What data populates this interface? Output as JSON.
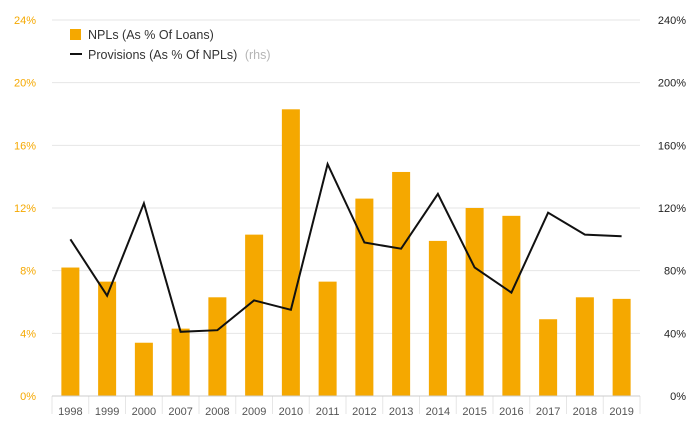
{
  "chart_data": {
    "type": "bar",
    "categories": [
      "1998",
      "1999",
      "2000",
      "2007",
      "2008",
      "2009",
      "2010",
      "2011",
      "2012",
      "2013",
      "2014",
      "2015",
      "2016",
      "2017",
      "2018",
      "2019"
    ],
    "series": [
      {
        "name": "NPLs (As % Of Loans)",
        "type": "bar",
        "axis": "left",
        "values": [
          8.2,
          7.3,
          3.4,
          4.3,
          6.3,
          10.3,
          18.3,
          7.3,
          12.6,
          14.3,
          9.9,
          12.0,
          11.5,
          4.9,
          6.3,
          6.2
        ]
      },
      {
        "name": "Provisions (As % Of NPLs)",
        "name_suffix": "(rhs)",
        "type": "line",
        "axis": "right",
        "values": [
          100,
          64,
          123,
          41,
          42,
          61,
          55,
          148,
          98,
          94,
          129,
          82,
          66,
          117,
          103,
          102
        ]
      }
    ],
    "y_left": {
      "lim": [
        0,
        24
      ],
      "ticks": [
        0,
        4,
        8,
        12,
        16,
        20,
        24
      ],
      "tick_labels": [
        "0%",
        "4%",
        "8%",
        "12%",
        "16%",
        "20%",
        "24%"
      ]
    },
    "y_right": {
      "lim": [
        0,
        240
      ],
      "ticks": [
        0,
        40,
        80,
        120,
        160,
        200,
        240
      ],
      "tick_labels": [
        "0%",
        "40%",
        "80%",
        "120%",
        "160%",
        "200%",
        "240%"
      ]
    },
    "grid": true,
    "legend_position": "top-left",
    "title": "",
    "xlabel": "",
    "ylabel": ""
  },
  "colors": {
    "bar": "#f5a800",
    "line": "#111111",
    "grid": "#e6e6e6",
    "left_tick": "#f5a800",
    "right_tick": "#222222"
  }
}
